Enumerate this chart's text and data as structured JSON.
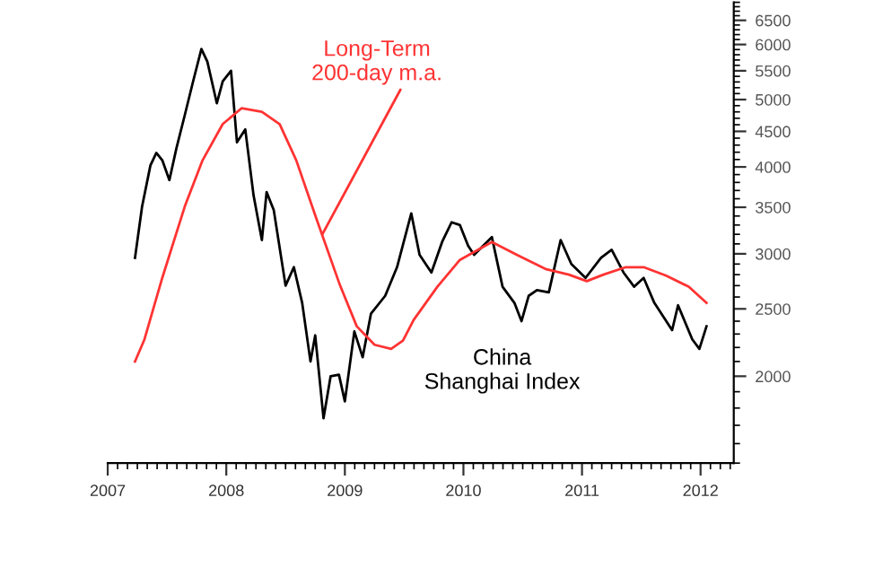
{
  "chart_data": {
    "type": "line",
    "series": [
      {
        "color": "#000000",
        "x": [
          2007.23,
          2007.29,
          2007.36,
          2007.41,
          2007.46,
          2007.52,
          2007.58,
          2007.65,
          2007.72,
          2007.79,
          2007.84,
          2007.92,
          2007.97,
          2008.04,
          2008.09,
          2008.16,
          2008.23,
          2008.3,
          2008.34,
          2008.4,
          2008.5,
          2008.57,
          2008.64,
          2008.71,
          2008.75,
          2008.82,
          2008.88,
          2008.95,
          2009.0,
          2009.08,
          2009.15,
          2009.22,
          2009.34,
          2009.44,
          2009.56,
          2009.63,
          2009.73,
          2009.82,
          2009.9,
          2009.97,
          2010.04,
          2010.09,
          2010.24,
          2010.33,
          2010.43,
          2010.49,
          2010.55,
          2010.62,
          2010.72,
          2010.82,
          2010.91,
          2011.03,
          2011.16,
          2011.25,
          2011.35,
          2011.44,
          2011.52,
          2011.61,
          2011.76,
          2011.81,
          2011.93,
          2011.99,
          2012.05
        ],
        "values": [
          2960,
          3510,
          4020,
          4190,
          4090,
          3830,
          4260,
          4750,
          5310,
          5910,
          5670,
          4940,
          5310,
          5500,
          4340,
          4530,
          3640,
          3140,
          3680,
          3470,
          2700,
          2870,
          2550,
          2100,
          2290,
          1740,
          2000,
          2010,
          1840,
          2320,
          2130,
          2460,
          2610,
          2870,
          3430,
          2990,
          2820,
          3120,
          3330,
          3300,
          3080,
          2990,
          3170,
          2690,
          2550,
          2400,
          2610,
          2660,
          2640,
          3140,
          2900,
          2770,
          2960,
          3040,
          2820,
          2690,
          2770,
          2550,
          2330,
          2530,
          2260,
          2190,
          2360
        ]
      },
      {
        "color": "#ff3333",
        "x": [
          2007.23,
          2007.31,
          2007.46,
          2007.65,
          2007.8,
          2007.97,
          2008.13,
          2008.3,
          2008.45,
          2008.59,
          2008.76,
          2008.96,
          2009.1,
          2009.25,
          2009.39,
          2009.49,
          2009.58,
          2009.78,
          2009.97,
          2010.24,
          2010.45,
          2010.7,
          2010.89,
          2011.04,
          2011.18,
          2011.37,
          2011.52,
          2011.71,
          2011.9,
          2012.05
        ],
        "values": [
          2100,
          2260,
          2770,
          3510,
          4090,
          4610,
          4860,
          4800,
          4610,
          4090,
          3370,
          2700,
          2360,
          2220,
          2190,
          2250,
          2410,
          2690,
          2940,
          3120,
          2990,
          2850,
          2800,
          2740,
          2800,
          2870,
          2870,
          2790,
          2690,
          2550
        ]
      }
    ],
    "log": "y",
    "xlim": [
      2007.0,
      2012.28
    ],
    "xticks": [
      2007,
      2008,
      2009,
      2010,
      2011,
      2012
    ],
    "ylim": [
      1500,
      6900
    ],
    "yticks": [
      2000,
      2500,
      3000,
      3500,
      4000,
      4500,
      5000,
      5500,
      6000,
      6500
    ],
    "grid": false,
    "legend": false,
    "annotations": [
      {
        "text": "Long-Term\n200-day m.a.",
        "x": 2008.81,
        "y": 3200
      },
      "China\nShanghai Index"
    ]
  }
}
